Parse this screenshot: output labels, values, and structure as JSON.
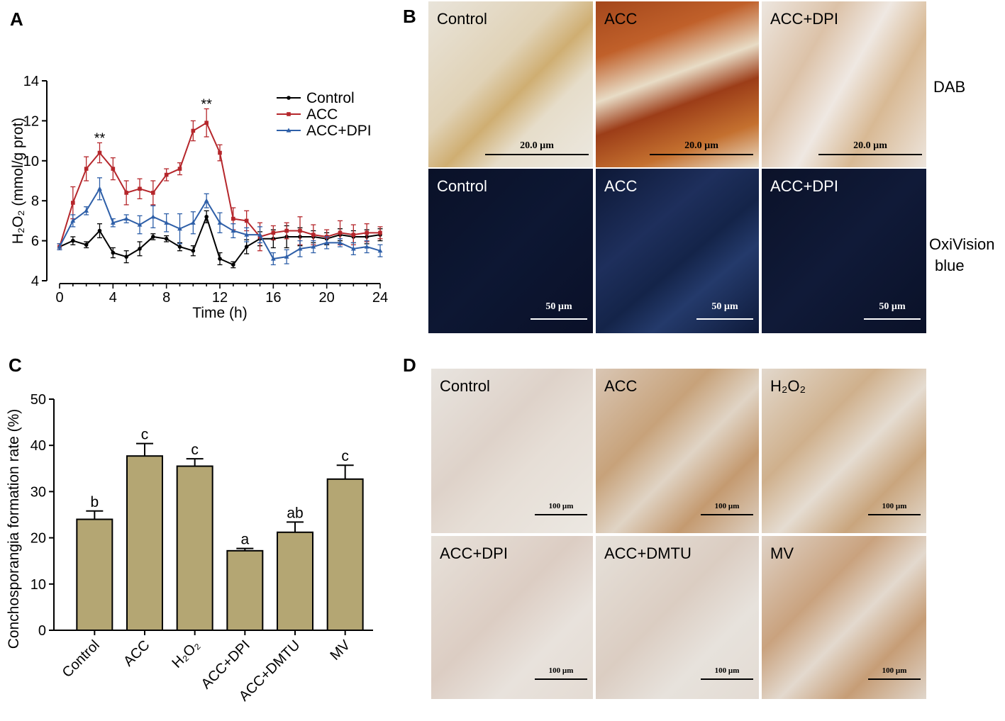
{
  "panels": {
    "a": {
      "letter": "A"
    },
    "b": {
      "letter": "B"
    },
    "c": {
      "letter": "C"
    },
    "d": {
      "letter": "D"
    }
  },
  "chart_data": [
    {
      "type": "line",
      "panel": "A",
      "ylabel": "H₂O₂ (mmol/g prot)",
      "xlabel": "Time (h)",
      "xlim": [
        0,
        24
      ],
      "ylim": [
        4,
        14
      ],
      "xticks": [
        0,
        4,
        8,
        12,
        16,
        20,
        24
      ],
      "yticks": [
        4,
        6,
        8,
        10,
        12,
        14
      ],
      "x": [
        0,
        1,
        2,
        3,
        4,
        5,
        6,
        7,
        8,
        9,
        10,
        11,
        12,
        13,
        14,
        15,
        16,
        17,
        18,
        19,
        20,
        21,
        22,
        23,
        24
      ],
      "legend_position": "top-right",
      "series": [
        {
          "name": "Control",
          "color": "#000000",
          "marker": "circle",
          "values": [
            5.7,
            6.0,
            5.8,
            6.5,
            5.4,
            5.2,
            5.6,
            6.2,
            6.1,
            5.7,
            5.5,
            7.2,
            5.1,
            4.8,
            5.7,
            6.1,
            6.1,
            6.2,
            6.2,
            6.2,
            6.1,
            6.3,
            6.2,
            6.2,
            6.3
          ],
          "errors": [
            0.15,
            0.2,
            0.15,
            0.35,
            0.25,
            0.3,
            0.35,
            0.15,
            0.15,
            0.2,
            0.25,
            0.3,
            0.3,
            0.15,
            0.35,
            0.35,
            0.45,
            0.55,
            0.45,
            0.3,
            0.3,
            0.3,
            0.3,
            0.35,
            0.3
          ]
        },
        {
          "name": "ACC",
          "color": "#b5262b",
          "marker": "square",
          "values": [
            5.7,
            7.9,
            9.6,
            10.4,
            9.6,
            8.4,
            8.6,
            8.4,
            9.3,
            9.6,
            11.5,
            11.9,
            10.4,
            7.1,
            7.0,
            6.2,
            6.4,
            6.5,
            6.5,
            6.3,
            6.2,
            6.4,
            6.3,
            6.4,
            6.4
          ],
          "errors": [
            0.15,
            0.8,
            0.6,
            0.5,
            0.55,
            0.6,
            0.5,
            0.6,
            0.3,
            0.3,
            0.5,
            0.7,
            0.4,
            0.55,
            0.5,
            0.7,
            0.35,
            0.4,
            0.7,
            0.5,
            0.35,
            0.6,
            0.5,
            0.45,
            0.3
          ]
        },
        {
          "name": "ACC+DPI",
          "color": "#2e5fa8",
          "marker": "triangle",
          "values": [
            5.7,
            7.0,
            7.5,
            8.6,
            6.9,
            7.1,
            6.8,
            7.2,
            6.9,
            6.6,
            6.9,
            8.0,
            6.9,
            6.5,
            6.3,
            6.3,
            5.1,
            5.2,
            5.6,
            5.7,
            5.9,
            5.9,
            5.6,
            5.7,
            5.5
          ],
          "errors": [
            0.15,
            0.3,
            0.2,
            0.55,
            0.2,
            0.2,
            0.45,
            0.55,
            0.45,
            0.75,
            0.55,
            0.35,
            0.5,
            0.35,
            0.35,
            0.4,
            0.3,
            0.35,
            0.4,
            0.3,
            0.3,
            0.2,
            0.3,
            0.3,
            0.3
          ]
        }
      ],
      "annotations": [
        {
          "text": "**",
          "x": 3,
          "y": 10.9
        },
        {
          "text": "**",
          "x": 11,
          "y": 12.6
        }
      ]
    },
    {
      "type": "bar",
      "panel": "C",
      "ylabel": "Conchosporangia formation rate (%)",
      "ylim": [
        0,
        50
      ],
      "yticks": [
        0,
        10,
        20,
        30,
        40,
        50
      ],
      "categories": [
        "Control",
        "ACC",
        "H₂O₂",
        "ACC+DPI",
        "ACC+DMTU",
        "MV"
      ],
      "values": [
        24.0,
        37.7,
        35.5,
        17.2,
        21.2,
        32.7
      ],
      "errors": [
        1.8,
        2.7,
        1.6,
        0.5,
        2.2,
        3.0
      ],
      "letters": [
        "b",
        "c",
        "c",
        "a",
        "ab",
        "c"
      ],
      "bar_color": "#b4a673"
    }
  ],
  "micrographs_b": {
    "row1": [
      {
        "caption": "Control",
        "scale": "20.0 µm"
      },
      {
        "caption": "ACC",
        "scale": "20.0 µm"
      },
      {
        "caption": "ACC+DPI",
        "scale": "20.0 µm"
      }
    ],
    "row1_label": "DAB",
    "row2": [
      {
        "caption": "Control",
        "scale": "50 µm"
      },
      {
        "caption": "ACC",
        "scale": "50 µm"
      },
      {
        "caption": "ACC+DPI",
        "scale": "50 µm"
      }
    ],
    "row2_label_line1": "OxiVision",
    "row2_label_line2": "blue"
  },
  "micrographs_d": {
    "row1": [
      {
        "caption": "Control",
        "scale": "100 µm"
      },
      {
        "caption": "ACC",
        "scale": "100 µm"
      },
      {
        "caption": "H₂O₂",
        "scale": "100 µm"
      }
    ],
    "row2": [
      {
        "caption": "ACC+DPI",
        "scale": "100 µm"
      },
      {
        "caption": "ACC+DMTU",
        "scale": "100 µm"
      },
      {
        "caption": "MV",
        "scale": "100 µm"
      }
    ]
  }
}
